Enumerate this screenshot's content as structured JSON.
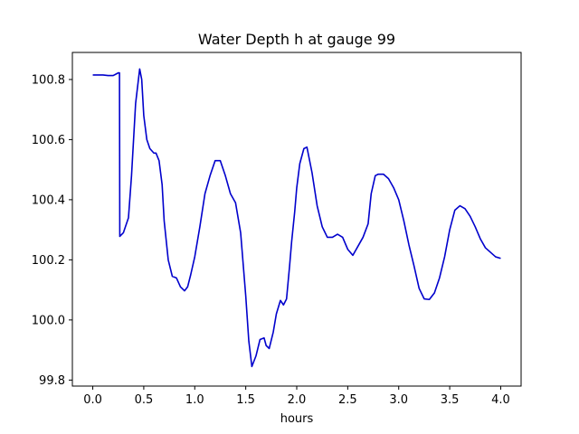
{
  "chart_data": {
    "type": "line",
    "title": "Water Depth h at gauge 99",
    "xlabel": "hours",
    "ylabel": "",
    "xlim": [
      -0.2,
      4.2
    ],
    "ylim": [
      99.78,
      100.89
    ],
    "xticks": [
      0.0,
      0.5,
      1.0,
      1.5,
      2.0,
      2.5,
      3.0,
      3.5,
      4.0
    ],
    "xtick_labels": [
      "0.0",
      "0.5",
      "1.0",
      "1.5",
      "2.0",
      "2.5",
      "3.0",
      "3.5",
      "4.0"
    ],
    "yticks": [
      99.8,
      100.0,
      100.2,
      100.4,
      100.6,
      100.8
    ],
    "ytick_labels": [
      "99.8",
      "100.0",
      "100.2",
      "100.4",
      "100.6",
      "100.8"
    ],
    "grid": false,
    "series": [
      {
        "color": "#0000cc",
        "x": [
          0.0,
          0.1,
          0.15,
          0.2,
          0.25,
          0.262,
          0.265,
          0.3,
          0.35,
          0.38,
          0.42,
          0.46,
          0.48,
          0.5,
          0.53,
          0.56,
          0.6,
          0.62,
          0.65,
          0.68,
          0.7,
          0.74,
          0.78,
          0.82,
          0.86,
          0.9,
          0.93,
          0.96,
          1.0,
          1.05,
          1.1,
          1.15,
          1.2,
          1.25,
          1.3,
          1.35,
          1.4,
          1.45,
          1.5,
          1.53,
          1.56,
          1.6,
          1.64,
          1.68,
          1.7,
          1.73,
          1.77,
          1.8,
          1.84,
          1.87,
          1.9,
          1.93,
          1.95,
          1.98,
          2.0,
          2.03,
          2.07,
          2.1,
          2.15,
          2.2,
          2.25,
          2.3,
          2.35,
          2.4,
          2.45,
          2.5,
          2.55,
          2.6,
          2.65,
          2.7,
          2.73,
          2.77,
          2.8,
          2.85,
          2.9,
          2.95,
          3.0,
          3.05,
          3.1,
          3.15,
          3.2,
          3.25,
          3.3,
          3.35,
          3.4,
          3.45,
          3.5,
          3.55,
          3.6,
          3.65,
          3.7,
          3.75,
          3.8,
          3.85,
          3.9,
          3.95,
          4.0
        ],
        "y": [
          100.815,
          100.815,
          100.813,
          100.813,
          100.822,
          100.822,
          100.278,
          100.29,
          100.34,
          100.48,
          100.72,
          100.835,
          100.8,
          100.68,
          100.6,
          100.57,
          100.555,
          100.555,
          100.53,
          100.45,
          100.33,
          100.2,
          100.145,
          100.14,
          100.11,
          100.097,
          100.11,
          100.15,
          100.21,
          100.31,
          100.42,
          100.48,
          100.53,
          100.53,
          100.48,
          100.42,
          100.39,
          100.29,
          100.08,
          99.93,
          99.845,
          99.88,
          99.935,
          99.94,
          99.915,
          99.905,
          99.96,
          100.02,
          100.065,
          100.05,
          100.07,
          100.18,
          100.26,
          100.36,
          100.44,
          100.52,
          100.57,
          100.575,
          100.49,
          100.38,
          100.31,
          100.275,
          100.275,
          100.285,
          100.275,
          100.235,
          100.215,
          100.245,
          100.275,
          100.32,
          100.42,
          100.48,
          100.485,
          100.485,
          100.47,
          100.44,
          100.4,
          100.33,
          100.25,
          100.18,
          100.105,
          100.07,
          100.068,
          100.09,
          100.14,
          100.21,
          100.3,
          100.365,
          100.38,
          100.37,
          100.345,
          100.31,
          100.27,
          100.24,
          100.225,
          100.21,
          100.205
        ]
      }
    ]
  }
}
